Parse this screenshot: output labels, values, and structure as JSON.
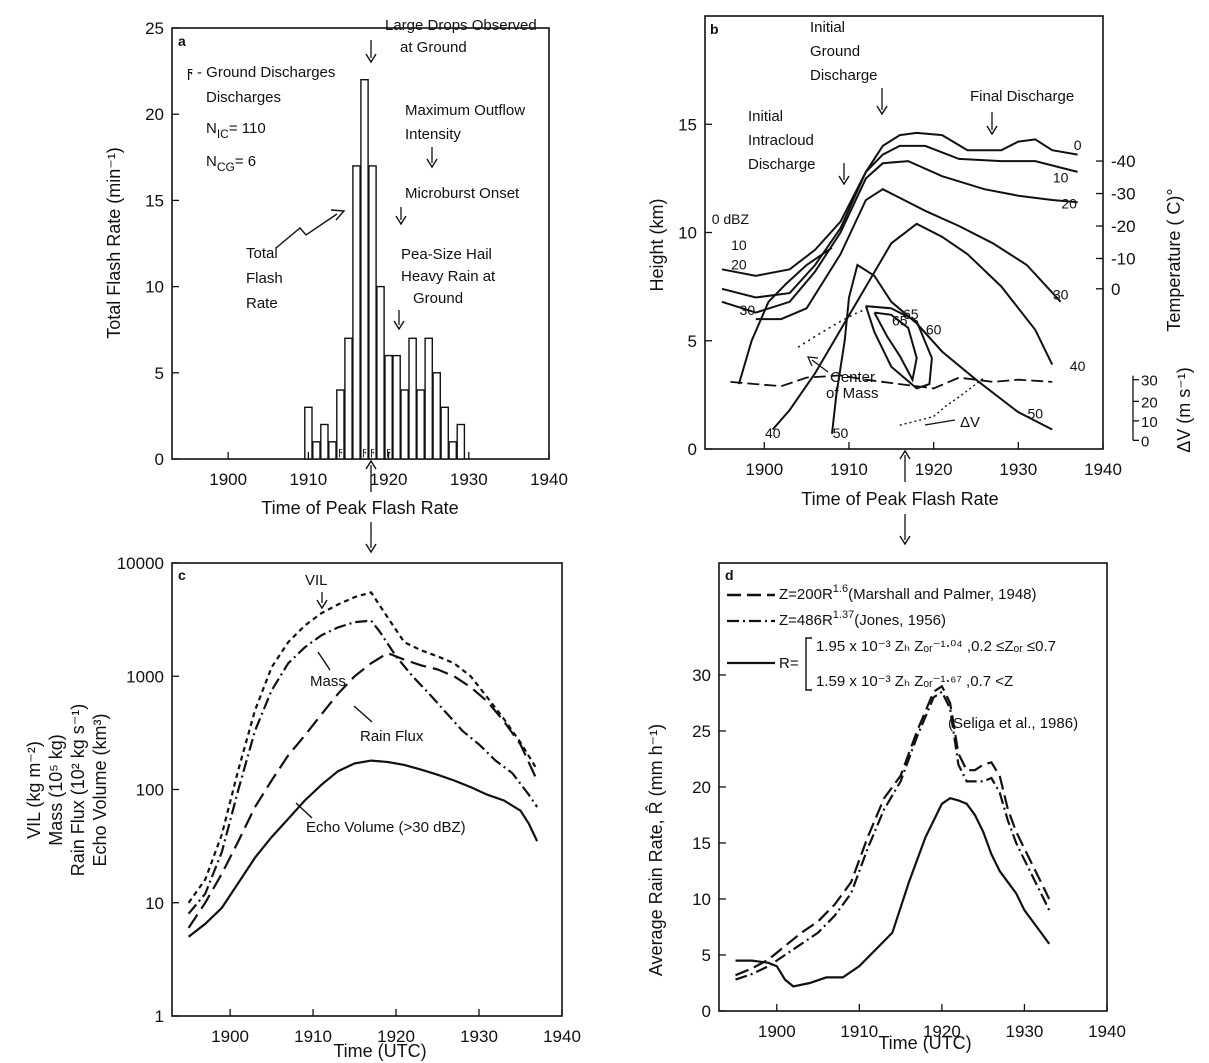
{
  "chart_data": [
    {
      "panel": "a",
      "type": "bar",
      "xlabel": "Time of Peak Flash Rate",
      "ylabel": "Total Flash Rate (min⁻¹)",
      "xlim": [
        1893,
        1940
      ],
      "ylim": [
        0,
        25
      ],
      "xticks": [
        "1900",
        "1910",
        "1920",
        "1930",
        "1940"
      ],
      "yticks": [
        "0",
        "5",
        "10",
        "15",
        "20",
        "25"
      ],
      "bar_width": 1,
      "x": [
        1910,
        1911,
        1912,
        1913,
        1914,
        1915,
        1916,
        1917,
        1918,
        1919,
        1920,
        1921,
        1922,
        1923,
        1924,
        1925,
        1926,
        1927,
        1928,
        1929
      ],
      "values": [
        3,
        1,
        2,
        1,
        4,
        7,
        17,
        22,
        17,
        10,
        6,
        6,
        4,
        7,
        4,
        7,
        5,
        3,
        1,
        2
      ],
      "ground_discharge_x": [
        1914,
        1917,
        1918,
        1920
      ],
      "legend": {
        "symbol": "ϝ",
        "ground_label": "- Ground Discharges",
        "nic": "N₁c= 110",
        "ncg": "Nₑ₇= 6",
        "nic_main": "N",
        "nic_sub": "IC",
        "nic_val": "= 110",
        "ncg_main": "N",
        "ncg_sub": "CG",
        "ncg_val": "= 6"
      },
      "annotations": {
        "large_drops": "Large Drops Observed",
        "large_drops2": "at Ground",
        "max_outflow": "Maximum Outflow",
        "max_outflow2": "Intensity",
        "microburst": "Microburst Onset",
        "hail": "Pea-Size Hail",
        "hail2": "Heavy Rain at",
        "hail3": "Ground",
        "total1": "Total",
        "total2": "Flash",
        "total3": "Rate"
      }
    },
    {
      "panel": "b",
      "type": "line",
      "xlabel": "Time of Peak Flash Rate",
      "ylabel": "Height (km)",
      "ylabel_right": "Temperature ( C)°",
      "ylabel_dv": "ΔV (m s⁻¹)",
      "xlim": [
        1893,
        1940
      ],
      "ylim": [
        0,
        20
      ],
      "xticks": [
        "1900",
        "1910",
        "1920",
        "1930",
        "1940"
      ],
      "yticks": [
        "0",
        "5",
        "10",
        "15"
      ],
      "temp_ticks": [
        {
          "label": "-40",
          "h": 13.3
        },
        {
          "label": "-30",
          "h": 11.8
        },
        {
          "label": "-20",
          "h": 10.3
        },
        {
          "label": "-10",
          "h": 8.8
        },
        {
          "label": "0",
          "h": 7.4
        }
      ],
      "dv_ticks": [
        {
          "label": "30",
          "h": 3.2
        },
        {
          "label": "20",
          "h": 2.2
        },
        {
          "label": "10",
          "h": 1.3
        },
        {
          "label": "0",
          "h": 0.4
        }
      ],
      "series": [
        {
          "name": "0 dBZ",
          "x": [
            1895,
            1899,
            1903,
            1906,
            1909,
            1912,
            1914,
            1916,
            1918,
            1921,
            1924,
            1928,
            1930,
            1932,
            1934,
            1937
          ],
          "y": [
            8.3,
            8.0,
            8.3,
            9.2,
            10.5,
            12.8,
            14.0,
            14.5,
            14.6,
            14.5,
            13.8,
            13.8,
            14.2,
            14.3,
            13.8,
            13.6
          ]
        },
        {
          "name": "10",
          "x": [
            1895,
            1899,
            1903,
            1906,
            1909,
            1912,
            1914,
            1916,
            1919,
            1923,
            1928,
            1932,
            1935,
            1937
          ],
          "y": [
            7.4,
            7.0,
            7.2,
            8.5,
            10.2,
            12.8,
            13.6,
            14.0,
            14.0,
            13.4,
            13.3,
            13.3,
            13.0,
            12.8
          ]
        },
        {
          "name": "20",
          "x": [
            1895,
            1899,
            1903,
            1906,
            1909,
            1912,
            1914,
            1917,
            1921,
            1926,
            1930,
            1934,
            1937
          ],
          "y": [
            6.8,
            6.3,
            6.8,
            8.2,
            10.0,
            12.5,
            13.2,
            13.3,
            12.6,
            12.0,
            11.7,
            11.5,
            11.4
          ]
        },
        {
          "name": "30",
          "x": [
            1899,
            1902,
            1905,
            1909,
            1912,
            1914,
            1916,
            1919,
            1923,
            1927,
            1931,
            1935
          ],
          "y": [
            6.0,
            6.0,
            6.5,
            9.0,
            11.5,
            12.0,
            11.6,
            11.0,
            10.3,
            9.5,
            8.5,
            6.8
          ]
        },
        {
          "name": "40",
          "x": [
            1901,
            1903,
            1906,
            1909,
            1912,
            1915,
            1918,
            1921,
            1924,
            1928,
            1932,
            1934
          ],
          "y": [
            0.9,
            1.8,
            3.5,
            5.5,
            7.5,
            9.5,
            10.4,
            9.8,
            9.0,
            7.5,
            5.5,
            3.9
          ]
        },
        {
          "name": "50",
          "x": [
            1908,
            1908.5,
            1909.5,
            1910,
            1911,
            1913,
            1915,
            1918,
            1921,
            1925,
            1930,
            1934
          ],
          "y": [
            0.7,
            2.5,
            5.0,
            7.0,
            8.5,
            8.0,
            6.8,
            5.8,
            4.5,
            3.2,
            1.7,
            0.9
          ]
        },
        {
          "name": "40 edge",
          "x": [
            1897,
            1898.5,
            1900.5,
            1902.5,
            1905,
            1908
          ],
          "y": [
            3.0,
            5.0,
            6.8,
            7.6,
            8.5,
            9.3
          ]
        },
        {
          "name": "65",
          "x": [
            1913,
            1915,
            1917,
            1918,
            1917.5,
            1916,
            1914.5,
            1913
          ],
          "y": [
            6.3,
            6.2,
            5.6,
            4.2,
            3.2,
            4.3,
            5.2,
            6.3
          ]
        },
        {
          "name": "60",
          "x": [
            1912,
            1915,
            1918,
            1919.8,
            1919.5,
            1918,
            1915,
            1913,
            1912
          ],
          "y": [
            6.6,
            6.5,
            5.9,
            4.2,
            3.0,
            2.8,
            3.8,
            5.4,
            6.6
          ]
        }
      ],
      "center_of_mass": {
        "x": [
          1904,
          1906,
          1909,
          1911,
          1913
        ],
        "y": [
          4.7,
          5.2,
          5.9,
          6.3,
          6.6
        ]
      },
      "delta_v": {
        "x": [
          1896,
          1899,
          1902,
          1905,
          1909,
          1912,
          1916,
          1920,
          1923,
          1927,
          1930,
          1934
        ],
        "y": [
          3.1,
          3.0,
          2.9,
          3.3,
          3.4,
          3.2,
          3.0,
          2.8,
          3.3,
          3.1,
          3.2,
          3.1
        ]
      },
      "delta_v_dotted": {
        "x": [
          1916,
          1918,
          1920,
          1921.5,
          1923,
          1926
        ],
        "y": [
          1.1,
          1.3,
          1.5,
          2.0,
          2.4,
          3.3
        ]
      },
      "contour_labels": [
        "0 dBZ",
        "10",
        "20",
        "30",
        "40",
        "50",
        "40",
        "50",
        "65",
        "60",
        "0",
        "10",
        "20",
        "30",
        "40"
      ],
      "annotations": {
        "initial_ground": "Initial",
        "initial_ground2": "Ground",
        "initial_ground3": "Discharge",
        "initial_intra": "Initial",
        "initial_intra2": "Intracloud",
        "initial_intra3": "Discharge",
        "final": "Final Discharge",
        "center": "Center",
        "center2": "of Mass",
        "dv": "ΔV"
      }
    },
    {
      "panel": "c",
      "type": "line",
      "xlabel": "Time (UTC)",
      "ylabel_lines": [
        "VIL (kg m⁻²)",
        "Mass (10⁵ kg)",
        "Rain Flux (10² kg s⁻¹)",
        "Echo Volume (km³)"
      ],
      "xlim": [
        1893,
        1940
      ],
      "ylim": [
        1,
        10000
      ],
      "yscale": "log",
      "xticks": [
        "1900",
        "1910",
        "1920",
        "1930",
        "1940"
      ],
      "yticks": [
        "1",
        "10",
        "100",
        "1000",
        "10000"
      ],
      "series": [
        {
          "name": "VIL",
          "x": [
            1895,
            1897,
            1899,
            1901,
            1903,
            1905,
            1907,
            1909,
            1911,
            1913,
            1915,
            1917,
            1919,
            1921,
            1923,
            1925,
            1927,
            1929,
            1931,
            1933,
            1935,
            1937
          ],
          "y": [
            10,
            16,
            40,
            150,
            500,
            1200,
            2000,
            2800,
            3600,
            4300,
            5000,
            5500,
            3300,
            2000,
            1700,
            1500,
            1300,
            1000,
            650,
            420,
            260,
            150
          ]
        },
        {
          "name": "Mass",
          "x": [
            1895,
            1897,
            1899,
            1901,
            1903,
            1905,
            1907,
            1909,
            1911,
            1913,
            1915,
            1917,
            1918,
            1920,
            1922,
            1924,
            1926,
            1928,
            1930,
            1932,
            1934,
            1936,
            1937
          ],
          "y": [
            8,
            12,
            28,
            100,
            330,
            750,
            1300,
            1800,
            2300,
            2700,
            3000,
            3100,
            2500,
            1500,
            1000,
            700,
            480,
            330,
            250,
            180,
            140,
            90,
            70
          ]
        },
        {
          "name": "Rain Flux",
          "x": [
            1895,
            1897,
            1899,
            1901,
            1903,
            1905,
            1907,
            1909,
            1911,
            1913,
            1915,
            1917,
            1919,
            1921,
            1923,
            1925,
            1927,
            1929,
            1931,
            1933,
            1935,
            1937
          ],
          "y": [
            6,
            10,
            18,
            35,
            70,
            120,
            200,
            300,
            460,
            700,
            1000,
            1300,
            1600,
            1400,
            1250,
            1150,
            1000,
            800,
            600,
            400,
            250,
            120
          ]
        },
        {
          "name": "Echo Volume (>30 dBZ)",
          "x": [
            1895,
            1897,
            1899,
            1901,
            1903,
            1905,
            1907,
            1909,
            1911,
            1913,
            1915,
            1917,
            1919,
            1921,
            1923,
            1925,
            1927,
            1929,
            1931,
            1933,
            1935,
            1936,
            1937
          ],
          "y": [
            5,
            6.5,
            9,
            15,
            25,
            38,
            55,
            80,
            110,
            145,
            170,
            180,
            175,
            165,
            150,
            135,
            120,
            105,
            90,
            80,
            65,
            50,
            35
          ]
        }
      ],
      "annotations": {
        "vil": "VIL",
        "mass": "Mass",
        "rainflux": "Rain Flux",
        "echo": "Echo Volume (>30 dBZ)"
      }
    },
    {
      "panel": "d",
      "type": "line",
      "xlabel": "Time (UTC)",
      "ylabel": "Average Rain Rate, R̂ (mm h⁻¹)",
      "xlim": [
        1893,
        1940
      ],
      "ylim": [
        0,
        40
      ],
      "xticks": [
        "1900",
        "1910",
        "1920",
        "1930",
        "1940"
      ],
      "yticks": [
        "0",
        "5",
        "10",
        "15",
        "20",
        "25",
        "30"
      ],
      "series": [
        {
          "name": "Z=200R^1.6 (Marshall and Palmer, 1948)",
          "x": [
            1895,
            1897,
            1899,
            1901,
            1903,
            1905,
            1907,
            1909,
            1911,
            1913,
            1915,
            1917,
            1919,
            1920,
            1921,
            1922,
            1923,
            1924,
            1925,
            1926,
            1927,
            1928,
            1929,
            1930,
            1931,
            1932,
            1933
          ],
          "y": [
            3.2,
            3.8,
            4.6,
            5.8,
            7.0,
            8.0,
            9.5,
            11.5,
            15.5,
            19.0,
            21.0,
            25.0,
            28.5,
            29.0,
            27.5,
            23.0,
            21.5,
            21.5,
            22.0,
            22.2,
            21.0,
            18.0,
            16.0,
            14.5,
            13.0,
            11.5,
            10.0
          ]
        },
        {
          "name": "Z=486R^1.37 (Jones, 1956)",
          "x": [
            1895,
            1897,
            1899,
            1901,
            1903,
            1905,
            1907,
            1909,
            1911,
            1913,
            1915,
            1917,
            1919,
            1920,
            1921,
            1922,
            1923,
            1924,
            1925,
            1926,
            1927,
            1928,
            1929,
            1930,
            1931,
            1932,
            1933
          ],
          "y": [
            2.8,
            3.3,
            4.0,
            5.0,
            6.0,
            7.0,
            8.5,
            10.5,
            14.5,
            18.0,
            20.5,
            24.5,
            28.0,
            28.5,
            27.0,
            22.0,
            20.5,
            20.5,
            20.5,
            20.8,
            19.5,
            17.0,
            15.0,
            13.5,
            12.0,
            10.5,
            9.0
          ]
        },
        {
          "name": "R (Seliga et al., 1986)",
          "x": [
            1895,
            1897,
            1899,
            1900,
            1901,
            1902,
            1904,
            1906,
            1908,
            1910,
            1912,
            1914,
            1916,
            1918,
            1920,
            1921,
            1922,
            1923,
            1924,
            1925,
            1926,
            1927,
            1928,
            1929,
            1930,
            1931,
            1932,
            1933
          ],
          "y": [
            4.5,
            4.5,
            4.3,
            4.0,
            2.8,
            2.2,
            2.5,
            3.0,
            3.0,
            4.0,
            5.5,
            7.0,
            11.5,
            15.5,
            18.5,
            19.0,
            18.8,
            18.5,
            17.5,
            16.0,
            14.0,
            12.5,
            11.5,
            10.5,
            9.0,
            8.0,
            7.0,
            6.0
          ]
        }
      ],
      "legend": {
        "mp": "Z=200R",
        "mp_exp": "1.6",
        "mp_ref": "(Marshall and Palmer, 1948)",
        "jones": "Z=486R",
        "jones_exp": "1.37",
        "jones_ref": "(Jones, 1956)",
        "r_label": "R=",
        "r_line1": "1.95 x 10⁻³ Zₕ Zₒᵣ⁻¹⋅⁰⁴ ,0.2 ≤Zₒᵣ ≤0.7",
        "r_line2": "1.59 x 10⁻³ Zₕ Zₒᵣ⁻¹⋅⁶⁷ ,0.7 <Z",
        "r_ref": "(Seliga et al., 1986)"
      }
    }
  ]
}
